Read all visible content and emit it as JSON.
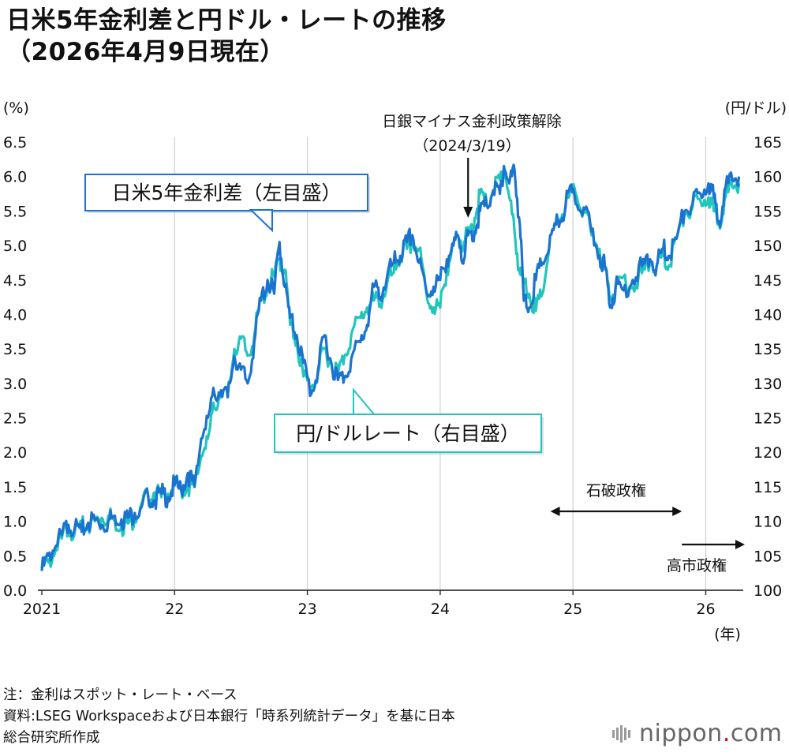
{
  "title": {
    "line1": "日米5年金利差と円ドル・レートの推移",
    "line2": "（2026年4月9日現在）"
  },
  "chart_data": {
    "type": "line",
    "title": "日米5年金利差と円ドル・レートの推移",
    "left_axis": {
      "unit_label": "(%)",
      "range": [
        0,
        6.5
      ],
      "ticks": [
        "0.0",
        "0.5",
        "1.0",
        "1.5",
        "2.0",
        "2.5",
        "3.0",
        "3.5",
        "4.0",
        "4.5",
        "5.0",
        "5.5",
        "6.0",
        "6.5"
      ]
    },
    "right_axis": {
      "unit_label": "(円/ドル)",
      "range": [
        100,
        165
      ],
      "ticks": [
        "100",
        "105",
        "110",
        "115",
        "120",
        "125",
        "130",
        "135",
        "140",
        "145",
        "150",
        "155",
        "160",
        "165"
      ]
    },
    "x_axis": {
      "unit_label": "(年)",
      "range": [
        2021.0,
        2026.3
      ],
      "ticks": [
        {
          "value": 2021,
          "label": "2021"
        },
        {
          "value": 2022,
          "label": "22"
        },
        {
          "value": 2023,
          "label": "23"
        },
        {
          "value": 2024,
          "label": "24"
        },
        {
          "value": 2025,
          "label": "25"
        },
        {
          "value": 2026,
          "label": "26"
        }
      ]
    },
    "grid": "vertical",
    "series": [
      {
        "name": "日米5年金利差（左目盛）",
        "axis": "left",
        "color": "#1a73d0",
        "points": [
          [
            2021.0,
            0.28
          ],
          [
            2021.05,
            0.5
          ],
          [
            2021.1,
            0.62
          ],
          [
            2021.15,
            0.8
          ],
          [
            2021.2,
            0.95
          ],
          [
            2021.25,
            0.93
          ],
          [
            2021.3,
            0.85
          ],
          [
            2021.35,
            0.98
          ],
          [
            2021.4,
            1.02
          ],
          [
            2021.45,
            0.95
          ],
          [
            2021.5,
            1.0
          ],
          [
            2021.55,
            1.08
          ],
          [
            2021.6,
            1.03
          ],
          [
            2021.65,
            1.05
          ],
          [
            2021.7,
            1.12
          ],
          [
            2021.75,
            1.2
          ],
          [
            2021.8,
            1.38
          ],
          [
            2021.85,
            1.3
          ],
          [
            2021.9,
            1.4
          ],
          [
            2021.95,
            1.35
          ],
          [
            2022.0,
            1.52
          ],
          [
            2022.05,
            1.45
          ],
          [
            2022.1,
            1.7
          ],
          [
            2022.15,
            1.5
          ],
          [
            2022.2,
            2.2
          ],
          [
            2022.25,
            2.5
          ],
          [
            2022.3,
            2.85
          ],
          [
            2022.35,
            2.9
          ],
          [
            2022.4,
            2.8
          ],
          [
            2022.45,
            3.4
          ],
          [
            2022.5,
            3.2
          ],
          [
            2022.55,
            3.0
          ],
          [
            2022.6,
            3.6
          ],
          [
            2022.65,
            4.2
          ],
          [
            2022.7,
            4.5
          ],
          [
            2022.75,
            4.3
          ],
          [
            2022.79,
            5.05
          ],
          [
            2022.83,
            4.4
          ],
          [
            2022.87,
            3.95
          ],
          [
            2022.92,
            3.7
          ],
          [
            2022.97,
            3.3
          ],
          [
            2023.03,
            2.85
          ],
          [
            2023.08,
            3.2
          ],
          [
            2023.13,
            3.7
          ],
          [
            2023.18,
            3.3
          ],
          [
            2023.23,
            3.05
          ],
          [
            2023.28,
            3.1
          ],
          [
            2023.33,
            3.35
          ],
          [
            2023.4,
            3.6
          ],
          [
            2023.45,
            3.85
          ],
          [
            2023.5,
            4.4
          ],
          [
            2023.55,
            4.25
          ],
          [
            2023.6,
            4.55
          ],
          [
            2023.65,
            4.75
          ],
          [
            2023.7,
            4.85
          ],
          [
            2023.75,
            5.05
          ],
          [
            2023.79,
            5.15
          ],
          [
            2023.84,
            4.75
          ],
          [
            2023.9,
            4.3
          ],
          [
            2023.95,
            4.4
          ],
          [
            2024.0,
            4.5
          ],
          [
            2024.05,
            4.8
          ],
          [
            2024.1,
            5.0
          ],
          [
            2024.14,
            5.1
          ],
          [
            2024.18,
            4.8
          ],
          [
            2024.21,
            5.15
          ],
          [
            2024.26,
            5.2
          ],
          [
            2024.3,
            5.5
          ],
          [
            2024.35,
            5.6
          ],
          [
            2024.4,
            5.8
          ],
          [
            2024.45,
            5.75
          ],
          [
            2024.48,
            6.15
          ],
          [
            2024.52,
            5.9
          ],
          [
            2024.56,
            6.1
          ],
          [
            2024.6,
            5.3
          ],
          [
            2024.63,
            4.2
          ],
          [
            2024.67,
            4.1
          ],
          [
            2024.72,
            4.5
          ],
          [
            2024.77,
            4.75
          ],
          [
            2024.82,
            4.95
          ],
          [
            2024.87,
            5.3
          ],
          [
            2024.92,
            5.4
          ],
          [
            2024.97,
            5.8
          ],
          [
            2025.02,
            5.6
          ],
          [
            2025.08,
            5.55
          ],
          [
            2025.14,
            5.2
          ],
          [
            2025.2,
            4.85
          ],
          [
            2025.24,
            4.7
          ],
          [
            2025.28,
            4.1
          ],
          [
            2025.32,
            4.4
          ],
          [
            2025.38,
            4.35
          ],
          [
            2025.45,
            4.5
          ],
          [
            2025.52,
            4.7
          ],
          [
            2025.58,
            4.8
          ],
          [
            2025.63,
            4.7
          ],
          [
            2025.68,
            4.95
          ],
          [
            2025.72,
            4.85
          ],
          [
            2025.78,
            5.1
          ],
          [
            2025.84,
            5.5
          ],
          [
            2025.9,
            5.6
          ],
          [
            2025.96,
            5.75
          ],
          [
            2026.02,
            5.9
          ],
          [
            2026.06,
            5.7
          ],
          [
            2026.1,
            5.35
          ],
          [
            2026.14,
            5.8
          ],
          [
            2026.2,
            5.95
          ],
          [
            2026.25,
            6.0
          ]
        ]
      },
      {
        "name": "円/ドルレート（右目盛）",
        "axis": "right",
        "color": "#20c6bc",
        "points": [
          [
            2021.0,
            103.2
          ],
          [
            2021.05,
            104.0
          ],
          [
            2021.1,
            105.5
          ],
          [
            2021.15,
            107.5
          ],
          [
            2021.2,
            109.0
          ],
          [
            2021.25,
            108.7
          ],
          [
            2021.3,
            109.2
          ],
          [
            2021.35,
            109.5
          ],
          [
            2021.4,
            110.0
          ],
          [
            2021.45,
            110.5
          ],
          [
            2021.5,
            110.8
          ],
          [
            2021.55,
            110.0
          ],
          [
            2021.6,
            109.4
          ],
          [
            2021.65,
            109.7
          ],
          [
            2021.7,
            110.5
          ],
          [
            2021.75,
            112.5
          ],
          [
            2021.8,
            113.8
          ],
          [
            2021.85,
            114.2
          ],
          [
            2021.9,
            113.5
          ],
          [
            2021.95,
            114.0
          ],
          [
            2022.0,
            115.3
          ],
          [
            2022.05,
            114.5
          ],
          [
            2022.1,
            115.3
          ],
          [
            2022.15,
            115.0
          ],
          [
            2022.2,
            119.5
          ],
          [
            2022.25,
            122.0
          ],
          [
            2022.3,
            126.5
          ],
          [
            2022.35,
            129.0
          ],
          [
            2022.4,
            128.0
          ],
          [
            2022.45,
            135.0
          ],
          [
            2022.5,
            136.5
          ],
          [
            2022.55,
            134.0
          ],
          [
            2022.6,
            137.0
          ],
          [
            2022.65,
            142.0
          ],
          [
            2022.7,
            144.0
          ],
          [
            2022.75,
            145.5
          ],
          [
            2022.79,
            148.0
          ],
          [
            2022.83,
            146.5
          ],
          [
            2022.87,
            138.5
          ],
          [
            2022.92,
            136.0
          ],
          [
            2022.97,
            131.0
          ],
          [
            2023.03,
            129.5
          ],
          [
            2023.08,
            131.5
          ],
          [
            2023.13,
            135.0
          ],
          [
            2023.18,
            133.0
          ],
          [
            2023.23,
            131.5
          ],
          [
            2023.28,
            134.0
          ],
          [
            2023.33,
            137.0
          ],
          [
            2023.4,
            139.5
          ],
          [
            2023.45,
            141.0
          ],
          [
            2023.5,
            142.0
          ],
          [
            2023.55,
            141.5
          ],
          [
            2023.6,
            144.5
          ],
          [
            2023.65,
            146.0
          ],
          [
            2023.7,
            148.5
          ],
          [
            2023.75,
            149.5
          ],
          [
            2023.79,
            150.3
          ],
          [
            2023.84,
            149.5
          ],
          [
            2023.9,
            142.5
          ],
          [
            2023.95,
            141.0
          ],
          [
            2024.0,
            141.0
          ],
          [
            2024.05,
            146.5
          ],
          [
            2024.1,
            150.0
          ],
          [
            2024.14,
            151.0
          ],
          [
            2024.18,
            150.5
          ],
          [
            2024.21,
            151.5
          ],
          [
            2024.26,
            154.0
          ],
          [
            2024.3,
            157.5
          ],
          [
            2024.35,
            156.0
          ],
          [
            2024.4,
            158.0
          ],
          [
            2024.45,
            159.5
          ],
          [
            2024.48,
            161.5
          ],
          [
            2024.52,
            157.0
          ],
          [
            2024.56,
            152.0
          ],
          [
            2024.6,
            146.0
          ],
          [
            2024.63,
            144.5
          ],
          [
            2024.67,
            143.0
          ],
          [
            2024.72,
            140.5
          ],
          [
            2024.77,
            143.0
          ],
          [
            2024.82,
            149.5
          ],
          [
            2024.87,
            153.0
          ],
          [
            2024.92,
            154.5
          ],
          [
            2024.97,
            157.0
          ],
          [
            2025.02,
            157.5
          ],
          [
            2025.08,
            155.0
          ],
          [
            2025.14,
            151.5
          ],
          [
            2025.2,
            149.5
          ],
          [
            2025.24,
            146.5
          ],
          [
            2025.28,
            142.5
          ],
          [
            2025.32,
            143.5
          ],
          [
            2025.38,
            145.5
          ],
          [
            2025.45,
            144.0
          ],
          [
            2025.52,
            146.0
          ],
          [
            2025.58,
            147.5
          ],
          [
            2025.63,
            147.0
          ],
          [
            2025.68,
            148.5
          ],
          [
            2025.72,
            147.0
          ],
          [
            2025.78,
            151.0
          ],
          [
            2025.84,
            154.5
          ],
          [
            2025.9,
            155.5
          ],
          [
            2025.96,
            156.5
          ],
          [
            2026.02,
            157.0
          ],
          [
            2026.06,
            155.0
          ],
          [
            2026.1,
            153.5
          ],
          [
            2026.14,
            156.5
          ],
          [
            2026.2,
            158.5
          ],
          [
            2026.25,
            159.0
          ]
        ]
      }
    ],
    "annotations": {
      "boj": {
        "line1": "日銀マイナス金利政策解除",
        "line2": "（2024/3/19）",
        "x": 2024.21
      },
      "ishiba": {
        "label": "石破政権",
        "x_start": 2024.83,
        "x_end": 2025.82
      },
      "takaichi": {
        "label": "高市政権",
        "x_start": 2025.82
      }
    },
    "callouts": {
      "spread": "日米5年金利差（左目盛）",
      "fx": "円/ドルレート（右目盛）"
    }
  },
  "notes": {
    "line1": "注：金利はスポット・レート・ベース",
    "line2": "資料:LSEG Workspaceおよび日本銀行「時系列統計データ」を基に日本",
    "line3": "総合研究所作成"
  },
  "logo": {
    "text": "nippon",
    "dot": ".",
    "suffix": "com"
  },
  "colors": {
    "spread": "#1a73d0",
    "fx": "#20c6bc",
    "grid": "#d0d0d0",
    "axis": "#333333"
  }
}
